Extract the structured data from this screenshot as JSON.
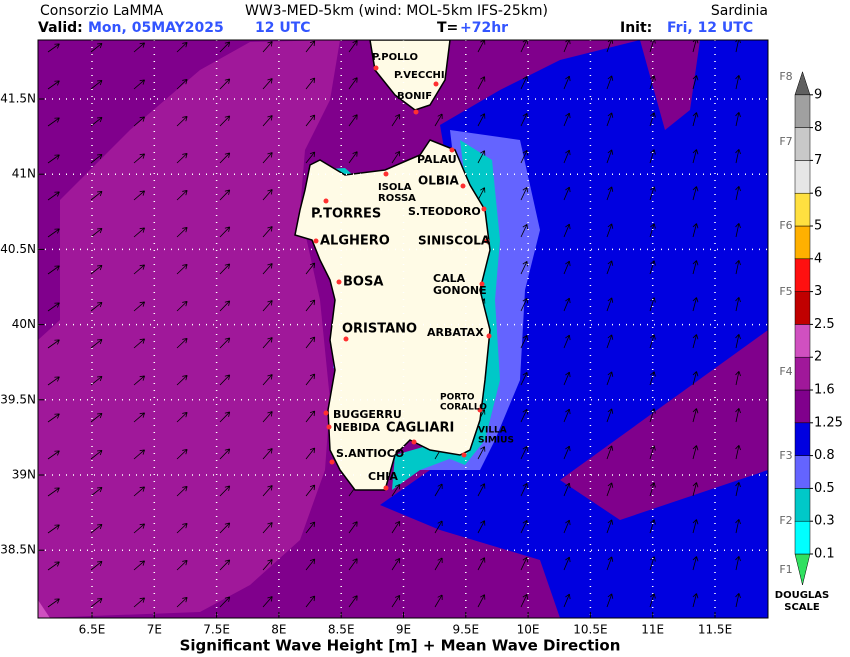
{
  "header": {
    "institute": "Consorzio LaMMA",
    "model": "WW3-MED-5km (wind: MOL-5km IFS-25km)",
    "region": "Sardinia",
    "valid_label": "Valid:",
    "valid_date": "Mon, 05MAY2025",
    "valid_time": "12 UTC",
    "lead_label": "T=",
    "lead": "+72hr",
    "init_label": "Init:",
    "init": "Fri, 12 UTC"
  },
  "map": {
    "lat_labels": [
      "41.5N",
      "41N",
      "40.5N",
      "40N",
      "39.5N",
      "39N",
      "38.5N"
    ],
    "lon_labels": [
      "6.5E",
      "7E",
      "7.5E",
      "8E",
      "8.5E",
      "9E",
      "9.5E",
      "10E",
      "10.5E",
      "11E",
      "11.5E"
    ],
    "places": [
      {
        "lines": [
          "P.POLLO"
        ]
      },
      {
        "lines": [
          "P.VECCHI"
        ]
      },
      {
        "lines": [
          "BONIF"
        ]
      },
      {
        "lines": [
          "PALAU"
        ]
      },
      {
        "lines": [
          "OLBIA"
        ]
      },
      {
        "lines": [
          "ISOLA",
          "ROSSA"
        ]
      },
      {
        "lines": [
          "P.TORRES"
        ]
      },
      {
        "lines": [
          "S.TEODORO"
        ]
      },
      {
        "lines": [
          "ALGHERO"
        ]
      },
      {
        "lines": [
          "SINISCOLA"
        ]
      },
      {
        "lines": [
          "BOSA"
        ]
      },
      {
        "lines": [
          "CALA",
          "GONONE"
        ]
      },
      {
        "lines": [
          "ORISTANO"
        ]
      },
      {
        "lines": [
          "ARBATAX"
        ]
      },
      {
        "lines": [
          "PORTO",
          "CORALLO"
        ]
      },
      {
        "lines": [
          "BUGGERRU"
        ]
      },
      {
        "lines": [
          "NEBIDA"
        ]
      },
      {
        "lines": [
          "CAGLIARI"
        ]
      },
      {
        "lines": [
          "VILLA",
          "SIMIUS"
        ]
      },
      {
        "lines": [
          "S.ANTIOCO"
        ]
      },
      {
        "lines": [
          "CHIA"
        ]
      }
    ]
  },
  "legend": {
    "levels": [
      0.1,
      0.3,
      0.5,
      0.8,
      1.25,
      1.6,
      2,
      2.5,
      3,
      4,
      5,
      6,
      7,
      8,
      9
    ],
    "colors": [
      "#30e060",
      "#00ffff",
      "#00c8c8",
      "#6464ff",
      "#0000e0",
      "#80008c",
      "#a0189a",
      "#d050c0",
      "#c00000",
      "#ff1010",
      "#ffb000",
      "#ffe040",
      "#e6e6e6",
      "#c8c8c8",
      "#a0a0a0",
      "#606060"
    ],
    "douglas": [
      "F1",
      "F2",
      "F3",
      "F4",
      "F5",
      "F6",
      "F7",
      "F8"
    ],
    "scale_label": [
      "DOUGLAS",
      "SCALE"
    ]
  },
  "footer": "Significant Wave Height [m] + Mean Wave Direction"
}
